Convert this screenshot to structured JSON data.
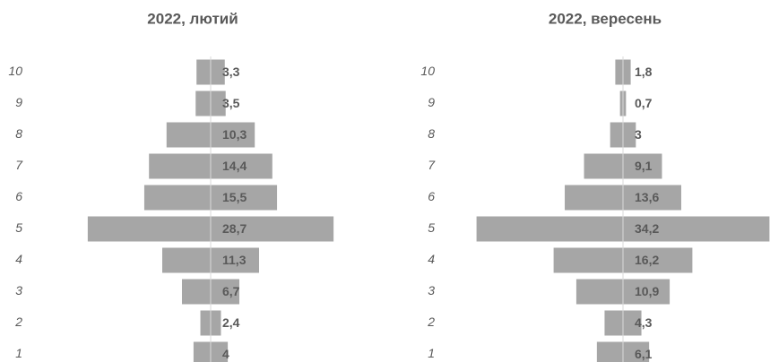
{
  "chart_data": [
    {
      "type": "bar",
      "orientation": "horizontal",
      "align": "center",
      "title": "2022, лютий",
      "categories": [
        "10",
        "9",
        "8",
        "7",
        "6",
        "5",
        "4",
        "3",
        "2",
        "1"
      ],
      "values": [
        3.3,
        3.5,
        10.3,
        14.4,
        15.5,
        28.7,
        11.3,
        6.7,
        2.4,
        4
      ],
      "value_labels": [
        "3,3",
        "3,5",
        "10,3",
        "14,4",
        "15,5",
        "28,7",
        "11,3",
        "6,7",
        "2,4",
        "4"
      ],
      "color": "#a6a6a6",
      "xlim": [
        -18,
        18
      ]
    },
    {
      "type": "bar",
      "orientation": "horizontal",
      "align": "center",
      "title": "2022, вересень",
      "categories": [
        "10",
        "9",
        "8",
        "7",
        "6",
        "5",
        "4",
        "3",
        "2",
        "1"
      ],
      "values": [
        1.8,
        0.7,
        3,
        9.1,
        13.6,
        34.2,
        16.2,
        10.9,
        4.3,
        6.1
      ],
      "value_labels": [
        "1,8",
        "0,7",
        "3",
        "9,1",
        "13,6",
        "34,2",
        "16,2",
        "10,9",
        "4,3",
        "6,1"
      ],
      "color": "#a6a6a6",
      "xlim": [
        -18,
        18
      ]
    }
  ]
}
